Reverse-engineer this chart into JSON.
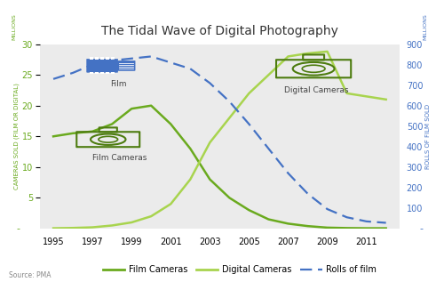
{
  "title": "The Tidal Wave of Digital Photography",
  "years": [
    1995,
    1996,
    1997,
    1998,
    1999,
    2000,
    2001,
    2002,
    2003,
    2004,
    2005,
    2006,
    2007,
    2008,
    2009,
    2010,
    2011,
    2012
  ],
  "film_cameras": [
    15.0,
    15.5,
    15.8,
    17.0,
    19.5,
    20.0,
    17.0,
    13.0,
    8.0,
    5.0,
    3.0,
    1.5,
    0.8,
    0.4,
    0.15,
    0.08,
    0.05,
    0.05
  ],
  "digital_cameras": [
    0.05,
    0.1,
    0.2,
    0.5,
    1.0,
    2.0,
    4.0,
    8.0,
    14.0,
    18.0,
    22.0,
    25.0,
    28.0,
    28.5,
    28.8,
    22.0,
    21.5,
    21.0
  ],
  "rolls_of_film": [
    730,
    760,
    800,
    820,
    830,
    840,
    810,
    780,
    710,
    620,
    510,
    390,
    270,
    170,
    95,
    55,
    35,
    28
  ],
  "film_cameras_color": "#6aaa1e",
  "digital_cameras_color": "#a8d44e",
  "rolls_color": "#4472c4",
  "camera_icon_color": "#4d7c0f",
  "film_roll_color": "#4472c4",
  "ylim_left": [
    0,
    30
  ],
  "ylim_right": [
    0,
    900
  ],
  "yticks_left": [
    5,
    10,
    15,
    20,
    25,
    30
  ],
  "yticks_right": [
    100,
    200,
    300,
    400,
    500,
    600,
    700,
    800,
    900
  ],
  "ylabel_left": "CAMERAS SOLD (FILM OR DIGITAL)",
  "ylabel_right": "ROLLS OF FILM SOLD",
  "ylabel_left_color": "#6aaa1e",
  "ylabel_right_color": "#4472c4",
  "source_text": "Source: PMA",
  "bg_color": "#ebebeb",
  "fig_bg_color": "#ffffff",
  "legend_labels": [
    "Film Cameras",
    "Digital Cameras",
    "Rolls of film"
  ],
  "millions_label_left": "MILLIONS",
  "millions_label_right": "MILLIONS"
}
